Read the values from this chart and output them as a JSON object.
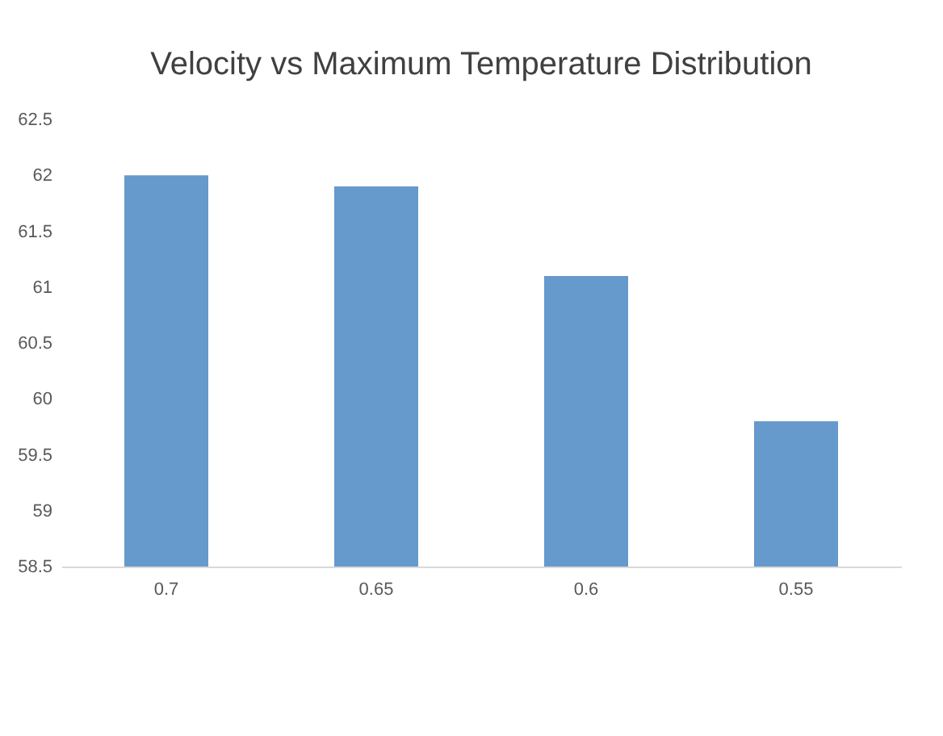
{
  "chart_data": {
    "type": "bar",
    "title": "Velocity vs Maximum Temperature Distribution",
    "categories": [
      "0.7",
      "0.65",
      "0.6",
      "0.55"
    ],
    "values": [
      62,
      61.9,
      61.1,
      59.8
    ],
    "color": "#6699cc",
    "ylim": [
      58.5,
      62.5
    ],
    "yticks": [
      58.5,
      59,
      59.5,
      60,
      60.5,
      61,
      61.5,
      62,
      62.5
    ],
    "grid": false
  }
}
